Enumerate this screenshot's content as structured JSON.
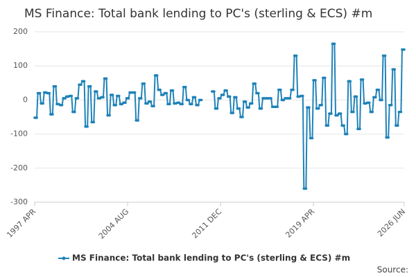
{
  "chart_data": {
    "type": "line",
    "title": "MS Finance: Total bank lending to PC's (sterling & ECS) #m",
    "source": "Source:",
    "categories": [
      "1997 APR",
      null,
      null,
      null,
      null,
      null,
      null,
      null,
      null,
      null,
      null,
      null,
      null,
      null,
      null,
      null,
      null,
      null,
      null,
      null,
      null,
      null,
      null,
      null,
      null,
      null,
      null,
      null,
      null,
      null,
      null,
      null,
      null,
      null,
      null,
      null,
      null,
      null,
      null,
      null,
      null,
      null,
      null,
      null,
      null,
      null,
      null,
      null,
      null,
      null,
      null,
      null,
      null,
      null,
      null,
      null,
      null,
      null,
      null,
      null,
      null,
      null,
      null,
      null,
      null,
      null,
      null,
      null,
      null,
      null,
      null,
      null,
      null,
      null,
      null,
      null,
      null,
      null,
      null,
      null,
      null,
      null,
      null,
      null,
      null,
      null,
      null,
      null,
      "2004 AUG",
      null,
      null,
      null,
      null,
      null,
      null,
      null,
      null,
      null,
      null,
      null,
      null,
      null,
      null,
      null,
      null,
      null,
      null,
      null,
      null,
      null,
      null,
      null,
      null,
      null,
      null,
      null,
      null,
      null,
      null,
      null,
      null,
      null,
      null,
      null,
      null,
      null,
      null,
      null,
      null,
      null,
      null,
      null,
      null,
      null,
      null,
      null,
      null,
      null,
      null,
      null,
      null,
      null,
      null,
      null,
      null,
      null,
      null,
      null,
      null,
      null,
      null,
      null,
      null,
      null,
      null,
      null,
      null,
      null,
      null,
      null,
      null,
      null,
      null,
      null,
      null,
      null,
      null,
      null,
      null,
      null,
      null,
      null,
      null,
      null,
      null,
      null,
      "2011 DEC",
      null,
      null,
      null,
      null,
      null,
      null,
      null,
      null,
      null,
      null,
      null,
      null,
      null,
      null,
      null,
      null,
      null,
      null,
      null,
      null,
      null,
      null,
      null,
      null,
      null,
      null,
      null,
      null,
      null,
      null,
      null,
      null,
      null,
      null,
      null,
      null,
      null,
      null,
      null,
      null,
      null,
      null,
      null,
      null,
      null,
      null,
      null,
      null,
      null,
      null,
      null,
      null,
      null,
      null,
      null,
      null,
      null,
      null,
      null,
      null,
      null,
      null,
      null,
      null,
      null,
      null,
      null,
      null,
      null,
      null,
      null,
      null,
      null,
      null,
      null,
      null,
      null,
      null,
      null,
      null,
      null,
      null,
      null,
      null,
      null,
      null,
      null,
      "2019 APR",
      null,
      null,
      null,
      null,
      null,
      null,
      null,
      null,
      null,
      null,
      null,
      null,
      null,
      null,
      null,
      null,
      null,
      null,
      null,
      null,
      null,
      null,
      null,
      null,
      null,
      null,
      null,
      null,
      null,
      null,
      null,
      null,
      null,
      null,
      null,
      null,
      null,
      null,
      null,
      null,
      null,
      null,
      null,
      null,
      null,
      null,
      null,
      null,
      null,
      null,
      null,
      null,
      null,
      null,
      null,
      null,
      null,
      null,
      null,
      null,
      null,
      null,
      null,
      null,
      null,
      null,
      null,
      null,
      null,
      null,
      null,
      null,
      null,
      null,
      null,
      null,
      null,
      null,
      null,
      null,
      null,
      null,
      null,
      null,
      null,
      "2026 JUN"
    ],
    "series": [
      {
        "name": "MS Finance: Total bank lending to PC's (sterling & ECS) #m",
        "color": "#1f82b8",
        "values": [
          -52,
          -52,
          -52,
          20,
          20,
          20,
          -10,
          -10,
          -10,
          22,
          22,
          22,
          20,
          20,
          20,
          -42,
          -42,
          -42,
          40,
          40,
          40,
          -12,
          -12,
          -12,
          -15,
          -15,
          -15,
          5,
          5,
          5,
          10,
          10,
          10,
          12,
          12,
          12,
          -35,
          -35,
          -35,
          5,
          5,
          5,
          45,
          45,
          45,
          55,
          55,
          55,
          -78,
          -78,
          -78,
          40,
          40,
          40,
          -65,
          -65,
          -65,
          25,
          25,
          25,
          5,
          5,
          5,
          8,
          8,
          8,
          63,
          63,
          63,
          -45,
          -45,
          -45,
          15,
          15,
          15,
          -15,
          -15,
          -15,
          12,
          12,
          12,
          -12,
          -12,
          -12,
          -8,
          -8,
          -8,
          5,
          5,
          5,
          22,
          22,
          22,
          22,
          22,
          22,
          -60,
          -60,
          -60,
          5,
          5,
          5,
          48,
          48,
          48,
          -10,
          -10,
          -10,
          -5,
          -5,
          -5,
          -18,
          -18,
          -18,
          72,
          72,
          72,
          30,
          30,
          30,
          15,
          15,
          15,
          20,
          20,
          20,
          -12,
          -12,
          -12,
          28,
          28,
          28,
          -10,
          -10,
          -10,
          -8,
          -8,
          -8,
          -12,
          -12,
          -12,
          38,
          38,
          38,
          0,
          0,
          0,
          -12,
          -12,
          -12,
          8,
          8,
          8,
          -15,
          -15,
          -15,
          0,
          0,
          0,
          null,
          null,
          null,
          null,
          null,
          null,
          null,
          null,
          null,
          25,
          25,
          25,
          -25,
          -25,
          -25,
          5,
          5,
          5,
          15,
          15,
          15,
          28,
          28,
          28,
          10,
          10,
          10,
          -38,
          -38,
          -38,
          8,
          8,
          8,
          -25,
          -25,
          -25,
          -50,
          -50,
          -50,
          -5,
          -5,
          -5,
          -22,
          -22,
          -22,
          -10,
          -10,
          -10,
          48,
          48,
          48,
          20,
          20,
          20,
          -25,
          -25,
          -25,
          5,
          5,
          5,
          5,
          5,
          5,
          5,
          5,
          5,
          -20,
          -20,
          -20,
          -20,
          -20,
          -20,
          30,
          30,
          30,
          0,
          0,
          0,
          5,
          5,
          5,
          5,
          5,
          5,
          30,
          30,
          30,
          130,
          130,
          130,
          10,
          10,
          10,
          12,
          12,
          12,
          -260,
          -260,
          -260,
          -22,
          -22,
          -22,
          -112,
          -112,
          -112,
          58,
          58,
          58,
          -25,
          -25,
          -25,
          -15,
          -15,
          -15,
          65,
          65,
          65,
          -75,
          -75,
          -75,
          -40,
          -40,
          -40,
          165,
          165,
          165,
          -45,
          -45,
          -45,
          -40,
          -40,
          -40,
          -75,
          -75,
          -75,
          -100,
          -100,
          -100,
          55,
          55,
          55,
          -35,
          -35,
          -35,
          10,
          10,
          10,
          -85,
          -85,
          -85,
          60,
          60,
          60,
          -10,
          -10,
          -10,
          -8,
          -8,
          -8,
          -35,
          -35,
          -35,
          8,
          8,
          8,
          30,
          30,
          30,
          0,
          0,
          0,
          130,
          130,
          130,
          -110,
          -110,
          -110,
          -15,
          -15,
          -15,
          90,
          90,
          90,
          -75,
          -75,
          -75,
          -35,
          -35,
          -35,
          148,
          148,
          148
        ]
      }
    ],
    "ylim": [
      -300,
      200
    ],
    "yticks": [
      -300,
      -200,
      -100,
      0,
      100,
      200
    ],
    "grid": true
  }
}
